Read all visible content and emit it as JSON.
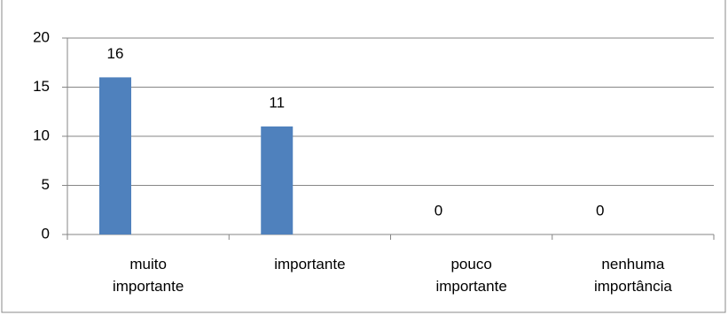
{
  "chart_data": {
    "type": "bar",
    "categories": [
      "muito importante",
      "importante",
      "pouco importante",
      "nenhuma importância"
    ],
    "values": [
      16,
      11,
      0,
      0
    ],
    "color": "#4f81bd",
    "ylim": [
      0,
      20
    ],
    "yticks": [
      0,
      5,
      10,
      15,
      20
    ],
    "grid": true
  }
}
